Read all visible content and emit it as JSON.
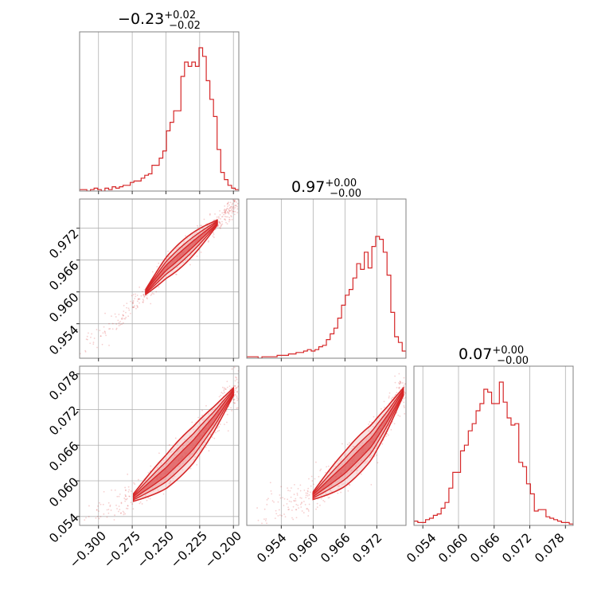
{
  "colors": {
    "accent": "#d62728",
    "fill_light": "#f2c2c2",
    "fill_mid": "#e88d8d",
    "grid": "#b0b0b0",
    "frame": "#808080"
  },
  "chart_data": [
    {
      "type": "histogram",
      "panel": "diag-0",
      "parameter_index": 0,
      "title": {
        "value": "−0.23",
        "plus": "+0.02",
        "minus": "−0.02"
      },
      "xlim": [
        -0.314,
        -0.196
      ],
      "xticks": [
        -0.3,
        -0.275,
        -0.25,
        -0.225,
        -0.2
      ],
      "bins": [
        -0.314,
        -0.196
      ],
      "counts": [
        1,
        1,
        0,
        1,
        2,
        1,
        0,
        2,
        1,
        3,
        2,
        3,
        4,
        4,
        6,
        7,
        7,
        9,
        11,
        12,
        18,
        18,
        23,
        28,
        42,
        48,
        56,
        56,
        80,
        90,
        87,
        90,
        87,
        100,
        94,
        77,
        64,
        52,
        29,
        13,
        8,
        4,
        2,
        1
      ],
      "ymax": 100
    },
    {
      "type": "histogram",
      "panel": "diag-1",
      "parameter_index": 1,
      "title": {
        "value": "0.97",
        "plus": "+0.00",
        "minus": "−0.00"
      },
      "xlim": [
        0.9475,
        0.9775
      ],
      "xticks": [
        0.954,
        0.96,
        0.966,
        0.972
      ],
      "bins": [
        0.9475,
        0.9775
      ],
      "counts": [
        1,
        1,
        1,
        0,
        1,
        1,
        1,
        1,
        2,
        2,
        2,
        3,
        3,
        4,
        4,
        5,
        6,
        5,
        6,
        8,
        9,
        13,
        17,
        21,
        28,
        37,
        44,
        48,
        56,
        66,
        62,
        74,
        63,
        78,
        85,
        83,
        74,
        58,
        32,
        15,
        11,
        5
      ],
      "ymax": 100
    },
    {
      "type": "histogram",
      "panel": "diag-2",
      "parameter_index": 2,
      "title": {
        "value": "0.07",
        "plus": "+0.00",
        "minus": "−0.00"
      },
      "xlim": [
        0.0525,
        0.0793
      ],
      "xticks": [
        0.054,
        0.06,
        0.066,
        0.072,
        0.078
      ],
      "bins": [
        0.0525,
        0.0793
      ],
      "counts": [
        3,
        2,
        2,
        4,
        5,
        7,
        8,
        12,
        16,
        26,
        37,
        37,
        52,
        56,
        66,
        71,
        80,
        85,
        95,
        93,
        85,
        85,
        100,
        86,
        75,
        70,
        71,
        44,
        41,
        29,
        22,
        10,
        11,
        11,
        6,
        5,
        4,
        3,
        2,
        2,
        1
      ],
      "ymax": 100
    },
    {
      "type": "scatter-contour",
      "panel": "r1c0",
      "x_param": 0,
      "y_param": 1,
      "xlim": [
        -0.314,
        -0.196
      ],
      "ylim": [
        0.9475,
        0.9775
      ],
      "yticks": [
        0.954,
        0.96,
        0.966,
        0.972
      ],
      "ridge": [
        [
          -0.314,
          0.949
        ],
        [
          -0.29,
          0.9535
        ],
        [
          -0.27,
          0.9585
        ],
        [
          -0.25,
          0.9645
        ],
        [
          -0.23,
          0.969
        ],
        [
          -0.21,
          0.9735
        ],
        [
          -0.196,
          0.9775
        ]
      ],
      "core_x": [
        -0.265,
        -0.212
      ],
      "spread": 0.0012
    },
    {
      "type": "scatter-contour",
      "panel": "r2c0",
      "x_param": 0,
      "y_param": 2,
      "xlim": [
        -0.314,
        -0.196
      ],
      "ylim": [
        0.0525,
        0.0793
      ],
      "xticks": [
        -0.3,
        -0.275,
        -0.25,
        -0.225,
        -0.2
      ],
      "yticks": [
        0.054,
        0.06,
        0.066,
        0.072,
        0.078
      ],
      "xlabels": [
        "−0.300",
        "−0.275",
        "−0.250",
        "−0.225",
        "−0.200"
      ],
      "ridge": [
        [
          -0.31,
          0.0535
        ],
        [
          -0.29,
          0.0555
        ],
        [
          -0.274,
          0.0572
        ],
        [
          -0.25,
          0.0615
        ],
        [
          -0.23,
          0.066
        ],
        [
          -0.214,
          0.0705
        ],
        [
          -0.2,
          0.075
        ]
      ],
      "core_x": [
        -0.274,
        -0.2
      ],
      "spread": 0.0016
    },
    {
      "type": "scatter-contour",
      "panel": "r2c1",
      "x_param": 1,
      "y_param": 2,
      "xlim": [
        0.9475,
        0.9775
      ],
      "ylim": [
        0.0525,
        0.0793
      ],
      "xticks": [
        0.954,
        0.96,
        0.966,
        0.972
      ],
      "xlabels": [
        "0.954",
        "0.960",
        "0.966",
        "0.972"
      ],
      "ridge": [
        [
          0.948,
          0.0535
        ],
        [
          0.953,
          0.0555
        ],
        [
          0.96,
          0.0575
        ],
        [
          0.966,
          0.062
        ],
        [
          0.971,
          0.0665
        ],
        [
          0.974,
          0.0705
        ],
        [
          0.977,
          0.075
        ]
      ],
      "core_x": [
        0.96,
        0.977
      ],
      "spread": 0.0016
    }
  ],
  "axis_labels": {
    "diag2_x": [
      "0.054",
      "0.060",
      "0.066",
      "0.072",
      "0.078"
    ],
    "r1c0_y": [
      "0.954",
      "0.960",
      "0.966",
      "0.972"
    ],
    "r2c0_y": [
      "0.054",
      "0.060",
      "0.066",
      "0.072",
      "0.078"
    ]
  }
}
